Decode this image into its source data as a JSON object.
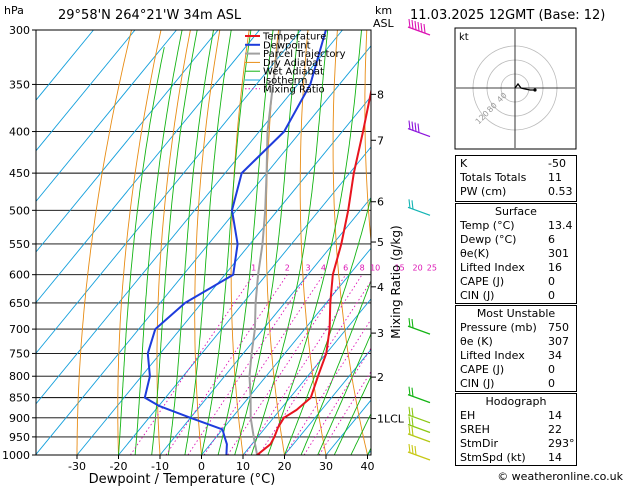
{
  "header": {
    "pressure_unit": "hPa",
    "location": "29°58'N  264°21'W  34m  ASL",
    "height_unit_km": "km",
    "height_unit_asl": "ASL",
    "datetime": "11.03.2025  12GMT  (Base: 12)"
  },
  "chart_data": {
    "type": "line",
    "title": "",
    "xlabel": "Dewpoint / Temperature (°C)",
    "ylabel_right": "Mixing Ratio (g/kg)",
    "pressure_levels": [
      300,
      350,
      400,
      450,
      500,
      550,
      600,
      650,
      700,
      750,
      800,
      850,
      900,
      950,
      1000
    ],
    "x_ticks": [
      -30,
      -20,
      -10,
      0,
      10,
      20,
      30,
      40
    ],
    "xlim": [
      -40,
      40
    ],
    "plim": [
      1000,
      300
    ],
    "km_ticks": [
      {
        "label": "8",
        "p": 360
      },
      {
        "label": "7",
        "p": 410
      },
      {
        "label": "6",
        "p": 488
      },
      {
        "label": "5",
        "p": 547
      },
      {
        "label": "4",
        "p": 621
      },
      {
        "label": "3",
        "p": 708
      },
      {
        "label": "2",
        "p": 802
      },
      {
        "label": "1LCL",
        "p": 902
      }
    ],
    "mixing_ratio_labels": [
      "1",
      "2",
      "3",
      "4",
      "6",
      "8",
      "10",
      "15",
      "20",
      "25"
    ],
    "mixing_ratio_values": [
      1,
      2,
      3,
      4,
      6,
      8,
      10,
      15,
      20,
      25
    ],
    "legend": [
      "Temperature",
      "Dewpoint",
      "Parcel Trajectory",
      "Dry Adiabat",
      "Wet Adiabat",
      "Isotherm",
      "Mixing Ratio"
    ],
    "colors": {
      "temperature": "#e8141e",
      "dewpoint": "#1e3cdc",
      "parcel": "#a0a0a0",
      "dry_adiabat": "#e88c14",
      "wet_adiabat": "#14b414",
      "isotherm": "#14a0dc",
      "mixing_ratio": "#dc14b4"
    },
    "series": [
      {
        "name": "Temperature",
        "points": [
          [
            1000,
            13.4
          ],
          [
            970,
            14.5
          ],
          [
            950,
            14.0
          ],
          [
            925,
            13.0
          ],
          [
            900,
            12.5
          ],
          [
            880,
            14.0
          ],
          [
            850,
            15.0
          ],
          [
            800,
            12.5
          ],
          [
            750,
            10.0
          ],
          [
            700,
            6.0
          ],
          [
            650,
            1.0
          ],
          [
            600,
            -4.0
          ],
          [
            550,
            -8.0
          ],
          [
            500,
            -13.0
          ],
          [
            450,
            -19.0
          ],
          [
            400,
            -25.0
          ],
          [
            350,
            -32.0
          ],
          [
            300,
            -41.0
          ]
        ]
      },
      {
        "name": "Dewpoint",
        "points": [
          [
            1000,
            6.0
          ],
          [
            970,
            4.0
          ],
          [
            950,
            2.0
          ],
          [
            930,
            0.0
          ],
          [
            900,
            -10.0
          ],
          [
            870,
            -20.0
          ],
          [
            850,
            -25.0
          ],
          [
            800,
            -28.0
          ],
          [
            750,
            -33.0
          ],
          [
            700,
            -36.0
          ],
          [
            650,
            -34.0
          ],
          [
            600,
            -28.0
          ],
          [
            550,
            -33.0
          ],
          [
            500,
            -41.0
          ],
          [
            450,
            -46.0
          ],
          [
            400,
            -44.0
          ],
          [
            350,
            -47.0
          ],
          [
            300,
            -54.0
          ]
        ]
      },
      {
        "name": "Parcel Trajectory",
        "points": [
          [
            1000,
            13.4
          ],
          [
            950,
            9.0
          ],
          [
            900,
            4.5
          ],
          [
            850,
            0.5
          ],
          [
            800,
            -4.0
          ],
          [
            750,
            -8.0
          ],
          [
            700,
            -12.0
          ],
          [
            650,
            -17.0
          ],
          [
            600,
            -22.0
          ],
          [
            550,
            -27.0
          ],
          [
            500,
            -33.0
          ],
          [
            450,
            -40.0
          ],
          [
            400,
            -48.0
          ],
          [
            350,
            -56.0
          ],
          [
            300,
            -65.0
          ]
        ]
      }
    ]
  },
  "hodograph": {
    "unit": "kt",
    "ring_labels": [
      "40",
      "80",
      "120"
    ]
  },
  "indices": {
    "rows": [
      {
        "label": "K",
        "value": "-50"
      },
      {
        "label": "Totals Totals",
        "value": "11"
      },
      {
        "label": "PW (cm)",
        "value": "0.53"
      }
    ]
  },
  "surface": {
    "title": "Surface",
    "rows": [
      {
        "label": "Temp (°C)",
        "value": "13.4"
      },
      {
        "label": "Dewp (°C)",
        "value": "6"
      },
      {
        "label": "θe(K)",
        "value": "301"
      },
      {
        "label": "Lifted Index",
        "value": "16"
      },
      {
        "label": "CAPE (J)",
        "value": "0"
      },
      {
        "label": "CIN (J)",
        "value": "0"
      }
    ]
  },
  "most_unstable": {
    "title": "Most Unstable",
    "rows": [
      {
        "label": "Pressure (mb)",
        "value": "750"
      },
      {
        "label": "θe (K)",
        "value": "307"
      },
      {
        "label": "Lifted Index",
        "value": "34"
      },
      {
        "label": "CAPE (J)",
        "value": "0"
      },
      {
        "label": "CIN (J)",
        "value": "0"
      }
    ]
  },
  "hodograph_indices": {
    "title": "Hodograph",
    "rows": [
      {
        "label": "EH",
        "value": "14"
      },
      {
        "label": "SREH",
        "value": "22"
      },
      {
        "label": "StmDir",
        "value": "293°"
      },
      {
        "label": "StmSpd (kt)",
        "value": "14"
      }
    ]
  },
  "footer": "© weatheronline.co.uk"
}
